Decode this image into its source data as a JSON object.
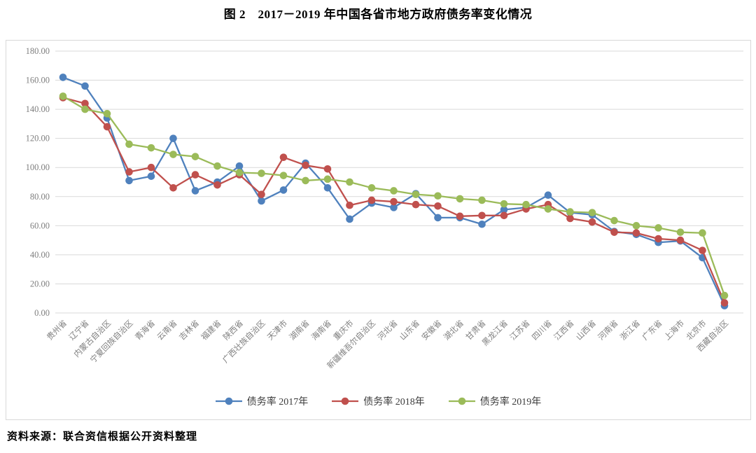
{
  "title": "图 2　2017－2019 年中国各省市地方政府债务率变化情况",
  "source": "资料来源：联合资信根据公开资料整理",
  "colors": {
    "series_2017": "#4F81BD",
    "series_2018": "#C0504D",
    "series_2019": "#9BBB59",
    "gridline": "#d9d9d9",
    "axis_text": "#7f7f7f",
    "border": "#d8d8d8"
  },
  "chart_data": {
    "type": "line",
    "title": "图 2　2017－2019 年中国各省市地方政府债务率变化情况",
    "xlabel": "",
    "ylabel": "",
    "ylim": [
      0,
      180
    ],
    "y_tick_step": 20,
    "y_ticks": [
      "0.00",
      "20.00",
      "40.00",
      "60.00",
      "80.00",
      "100.00",
      "120.00",
      "140.00",
      "160.00",
      "180.00"
    ],
    "grid": true,
    "legend_position": "bottom",
    "categories": [
      "贵州省",
      "辽宁省",
      "内蒙古自治区",
      "宁夏回族自治区",
      "青海省",
      "云南省",
      "吉林省",
      "福建省",
      "陕西省",
      "广西壮族自治区",
      "天津市",
      "湖南省",
      "海南省",
      "重庆市",
      "新疆维吾尔自治区",
      "河北省",
      "山东省",
      "安徽省",
      "湖北省",
      "甘肃省",
      "黑龙江省",
      "江苏省",
      "四川省",
      "江西省",
      "山西省",
      "河南省",
      "浙江省",
      "广东省",
      "上海市",
      "北京市",
      "西藏自治区"
    ],
    "series": [
      {
        "name": "债务率 2017年",
        "color": "#4F81BD",
        "values": [
          162,
          156,
          134,
          91,
          94,
          120,
          84,
          90,
          101,
          77,
          84.5,
          103,
          86,
          64.5,
          75.5,
          72.5,
          82,
          65.5,
          65.5,
          61,
          71,
          72.5,
          81,
          69,
          67.5,
          56,
          54,
          48.5,
          49.5,
          38,
          5
        ]
      },
      {
        "name": "债务率 2018年",
        "color": "#C0504D",
        "values": [
          148,
          144,
          128,
          97,
          100,
          86,
          95,
          88,
          95,
          81.5,
          107,
          101.5,
          99,
          74,
          77.5,
          76.5,
          74.5,
          73.5,
          66.5,
          67,
          67,
          71.5,
          74.5,
          65,
          62.5,
          55.5,
          55,
          51,
          50,
          43,
          7
        ]
      },
      {
        "name": "债务率 2019年",
        "color": "#9BBB59",
        "values": [
          149,
          140,
          137,
          116,
          113.5,
          109,
          107.5,
          101,
          96.5,
          96,
          94.5,
          91,
          92,
          90,
          86,
          84,
          81.5,
          80.5,
          78.5,
          77.5,
          75,
          74.5,
          71.5,
          69.5,
          69,
          63.5,
          60,
          58.5,
          55.5,
          55,
          12
        ]
      }
    ]
  }
}
